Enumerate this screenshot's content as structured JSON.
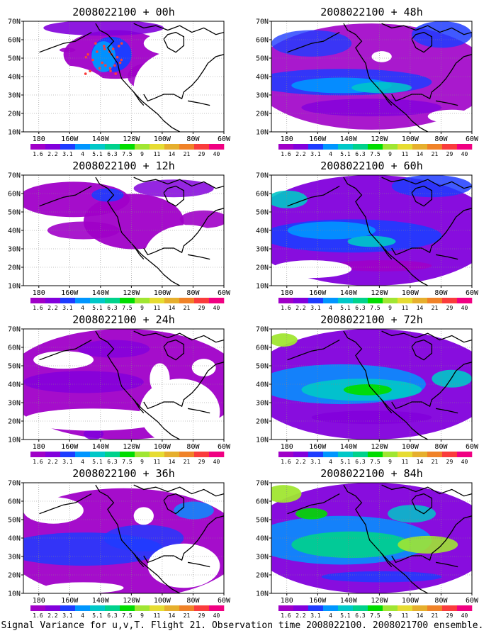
{
  "figure": {
    "caption": "Signal Variance for u,v,T. Flight 21. Observation time 2008022100. 2008021700 ensemble."
  },
  "colorbar": {
    "levels": [
      "1.6",
      "2.2",
      "3.1",
      "4",
      "5.1",
      "6.3",
      "7.5",
      "9",
      "11",
      "14",
      "21",
      "29",
      "40"
    ],
    "colors": [
      "#a000c8",
      "#8200dc",
      "#1e3cff",
      "#0096ff",
      "#00c8c8",
      "#00d28c",
      "#00dc00",
      "#a0e632",
      "#e6dc32",
      "#e6af2d",
      "#f08228",
      "#fa3c3c",
      "#f00082"
    ]
  },
  "map": {
    "lat_ticks": [
      "10N",
      "20N",
      "30N",
      "40N",
      "50N",
      "60N",
      "70N"
    ],
    "lon_ticks": [
      "180",
      "160W",
      "140W",
      "120W",
      "100W",
      "80W",
      "60W"
    ]
  },
  "chart_data": [
    {
      "type": "heatmap",
      "title": "2008022100 + 00h",
      "xlim": [
        "170E",
        "60W"
      ],
      "ylim": [
        "10N",
        "70N"
      ],
      "grid": true,
      "peak_level": "5.1",
      "colorbar": "bottom"
    },
    {
      "type": "heatmap",
      "title": "2008022100 + 48h",
      "xlim": [
        "170E",
        "60W"
      ],
      "ylim": [
        "10N",
        "70N"
      ],
      "grid": true,
      "peak_level": "6.3",
      "colorbar": "bottom"
    },
    {
      "type": "heatmap",
      "title": "2008022100 + 12h",
      "xlim": [
        "170E",
        "60W"
      ],
      "ylim": [
        "10N",
        "70N"
      ],
      "grid": true,
      "peak_level": "4",
      "colorbar": "bottom"
    },
    {
      "type": "heatmap",
      "title": "2008022100 + 60h",
      "xlim": [
        "170E",
        "60W"
      ],
      "ylim": [
        "10N",
        "70N"
      ],
      "grid": true,
      "peak_level": "7.5",
      "colorbar": "bottom"
    },
    {
      "type": "heatmap",
      "title": "2008022100 + 24h",
      "xlim": [
        "170E",
        "60W"
      ],
      "ylim": [
        "10N",
        "70N"
      ],
      "grid": true,
      "peak_level": "4",
      "colorbar": "bottom"
    },
    {
      "type": "heatmap",
      "title": "2008022100 + 72h",
      "xlim": [
        "170E",
        "60W"
      ],
      "ylim": [
        "10N",
        "70N"
      ],
      "grid": true,
      "peak_level": "11",
      "colorbar": "bottom"
    },
    {
      "type": "heatmap",
      "title": "2008022100 + 36h",
      "xlim": [
        "170E",
        "60W"
      ],
      "ylim": [
        "10N",
        "70N"
      ],
      "grid": true,
      "peak_level": "5.1",
      "colorbar": "bottom"
    },
    {
      "type": "heatmap",
      "title": "2008022100 + 84h",
      "xlim": [
        "170E",
        "60W"
      ],
      "ylim": [
        "10N",
        "70N"
      ],
      "grid": true,
      "peak_level": "11",
      "colorbar": "bottom"
    }
  ]
}
